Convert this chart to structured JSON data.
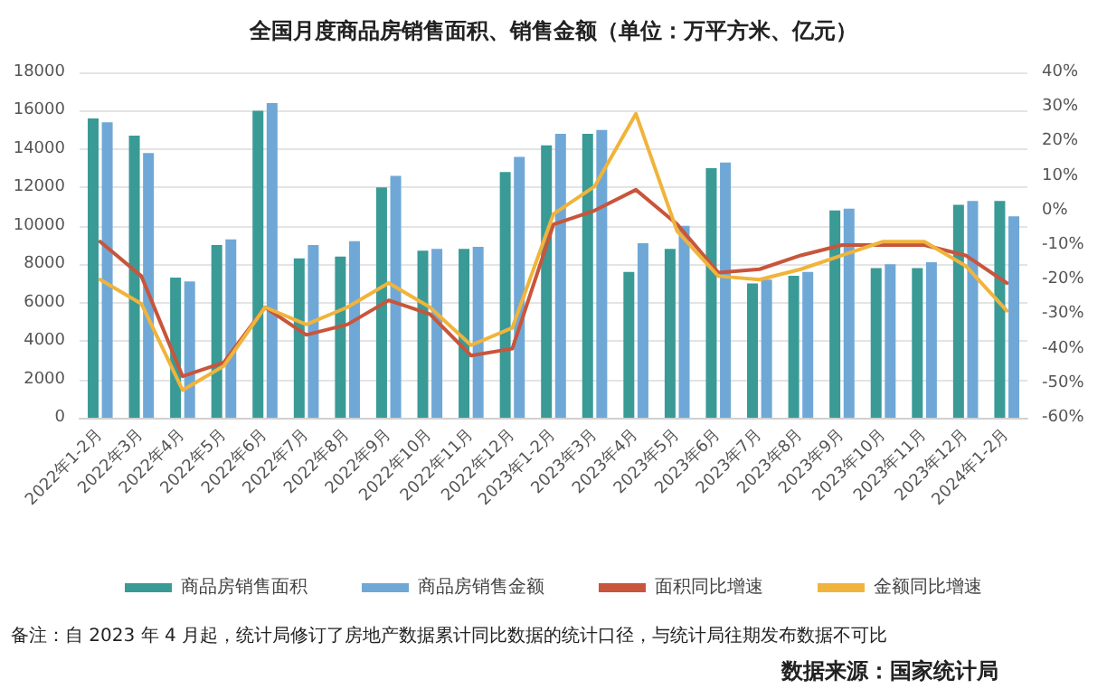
{
  "chart_data": {
    "type": "bar",
    "title": "全国月度商品房销售面积、销售金额（单位：万平方米、亿元）",
    "categories": [
      "2022年1-2月",
      "2022年3月",
      "2022年4月",
      "2022年5月",
      "2022年6月",
      "2022年7月",
      "2022年8月",
      "2022年9月",
      "2022年10月",
      "2022年11月",
      "2022年12月",
      "2023年1-2月",
      "2023年3月",
      "2023年4月",
      "2023年5月",
      "2023年6月",
      "2023年7月",
      "2023年8月",
      "2023年9月",
      "2023年10月",
      "2023年11月",
      "2023年12月",
      "2024年1-2月"
    ],
    "series": [
      {
        "name": "商品房销售面积",
        "color": "#3a9a96",
        "values": [
          15600,
          14700,
          7300,
          9000,
          16000,
          8300,
          8400,
          12000,
          8700,
          8800,
          12800,
          14200,
          14800,
          7600,
          8800,
          13000,
          7000,
          7400,
          10800,
          7800,
          7800,
          11100,
          11300
        ]
      },
      {
        "name": "商品房销售金额",
        "color": "#6fa8d6",
        "values": [
          15400,
          13800,
          7100,
          9300,
          16400,
          9000,
          9200,
          12600,
          8800,
          8900,
          13600,
          14800,
          15000,
          9100,
          10000,
          13300,
          7200,
          7600,
          10900,
          8000,
          8100,
          11300,
          10500
        ]
      },
      {
        "name": "面积同比增速",
        "type": "line",
        "axis": "y2",
        "color": "#c8553c",
        "values": [
          -9,
          -19,
          -48,
          -44,
          -28,
          -36,
          -33,
          -26,
          -30,
          -42,
          -40,
          -4,
          0,
          6,
          -4,
          -18,
          -17,
          -13,
          -10,
          -10,
          -10,
          -13,
          -21
        ]
      },
      {
        "name": "金额同比增速",
        "type": "line",
        "axis": "y2",
        "color": "#f0b43c",
        "values": [
          -20,
          -27,
          -52,
          -45,
          -28,
          -33,
          -28,
          -21,
          -28,
          -39,
          -34,
          -1,
          7,
          28,
          -6,
          -19,
          -20,
          -17,
          -13,
          -9,
          -9,
          -16,
          -29
        ]
      }
    ],
    "ylim": [
      0,
      18000
    ],
    "yticks": [
      0,
      2000,
      4000,
      6000,
      8000,
      10000,
      12000,
      14000,
      16000,
      18000
    ],
    "y2lim": [
      -60,
      40
    ],
    "y2ticks": [
      {
        "value": -60,
        "label": "-60%"
      },
      {
        "value": -50,
        "label": "-50%"
      },
      {
        "value": -40,
        "label": "-40%"
      },
      {
        "value": -30,
        "label": "-30%"
      },
      {
        "value": -20,
        "label": "-20%"
      },
      {
        "value": -10,
        "label": "-10%"
      },
      {
        "value": 0,
        "label": "0%"
      },
      {
        "value": 10,
        "label": "10%"
      },
      {
        "value": 20,
        "label": "20%"
      },
      {
        "value": 30,
        "label": "30%"
      },
      {
        "value": 40,
        "label": "40%"
      }
    ],
    "grid": "y",
    "legend": "bottom",
    "marker": "none",
    "line_style": "solid",
    "annotations": [
      "备注：自 2023 年 4 月起，统计局修订了房地产数据累计同比数据的统计口径，与统计局往期发布数据不可比",
      "数据来源：国家统计局"
    ]
  }
}
